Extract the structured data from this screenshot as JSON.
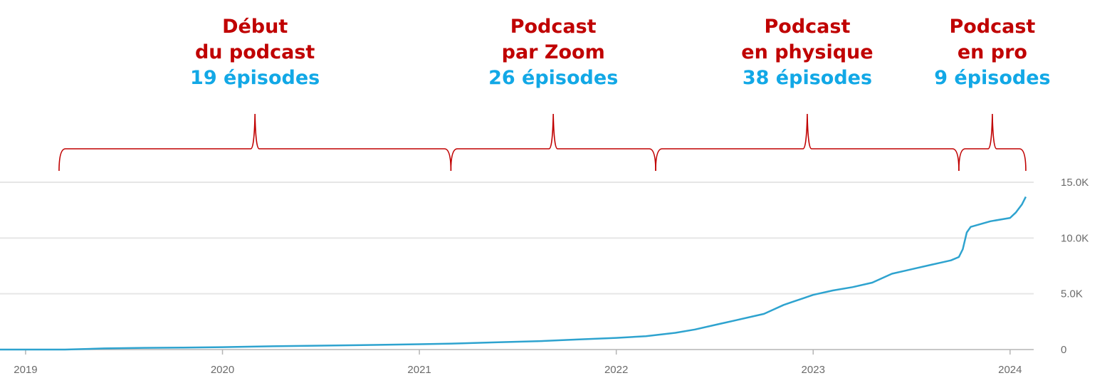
{
  "colors": {
    "accent_red": "#c00000",
    "accent_blue": "#12a8e6",
    "line": "#2ea3cf",
    "grid": "#e6e6e6",
    "axis": "#b5b5b5",
    "tick_text": "#6b6b6b"
  },
  "phases": [
    {
      "title_lines": [
        "Début",
        "du podcast"
      ],
      "count": "19 épisodes",
      "start": 2019.17,
      "end": 2021.16
    },
    {
      "title_lines": [
        "Podcast",
        "par Zoom"
      ],
      "count": "26 épisodes",
      "start": 2021.16,
      "end": 2022.2
    },
    {
      "title_lines": [
        "Podcast",
        "en physique"
      ],
      "count": "38 épisodes",
      "start": 2022.2,
      "end": 2023.74
    },
    {
      "title_lines": [
        "Podcast",
        "en pro"
      ],
      "count": "9 épisodes",
      "start": 2023.74,
      "end": 2024.08
    }
  ],
  "chart_data": {
    "type": "line",
    "title": "",
    "xlabel": "",
    "ylabel": "",
    "xlim": [
      2018.87,
      2024.12
    ],
    "ylim": [
      0,
      15000
    ],
    "x_ticks": [
      {
        "value": 2019,
        "label": "2019"
      },
      {
        "value": 2020,
        "label": "2020"
      },
      {
        "value": 2021,
        "label": "2021"
      },
      {
        "value": 2022,
        "label": "2022"
      },
      {
        "value": 2023,
        "label": "2023"
      },
      {
        "value": 2024,
        "label": "2024"
      }
    ],
    "y_ticks": [
      {
        "value": 0,
        "label": "0"
      },
      {
        "value": 5000,
        "label": "5.0K"
      },
      {
        "value": 10000,
        "label": "10.0K"
      },
      {
        "value": 15000,
        "label": "15.0K"
      }
    ],
    "grid": true,
    "y_axis_position": "right",
    "series": [
      {
        "x": [
          2018.87,
          2019.2,
          2019.4,
          2019.6,
          2019.8,
          2020.0,
          2020.2,
          2020.5,
          2020.8,
          2021.0,
          2021.2,
          2021.4,
          2021.6,
          2021.8,
          2022.0,
          2022.15,
          2022.3,
          2022.4,
          2022.5,
          2022.6,
          2022.7,
          2022.75,
          2022.8,
          2022.85,
          2022.9,
          2022.95,
          2023.0,
          2023.1,
          2023.2,
          2023.3,
          2023.4,
          2023.5,
          2023.6,
          2023.65,
          2023.7,
          2023.74,
          2023.76,
          2023.78,
          2023.8,
          2023.9,
          2024.0,
          2024.03,
          2024.06,
          2024.08
        ],
        "y": [
          0,
          0,
          100,
          150,
          180,
          220,
          280,
          350,
          420,
          480,
          550,
          650,
          750,
          900,
          1050,
          1200,
          1500,
          1800,
          2200,
          2600,
          3000,
          3200,
          3600,
          4000,
          4300,
          4600,
          4900,
          5300,
          5600,
          6000,
          6800,
          7200,
          7600,
          7800,
          8000,
          8300,
          9000,
          10500,
          11000,
          11500,
          11800,
          12300,
          13000,
          13700
        ]
      }
    ]
  }
}
